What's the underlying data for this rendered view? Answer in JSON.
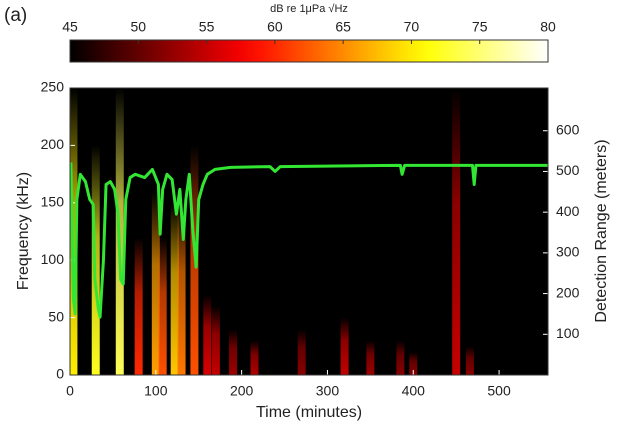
{
  "panel_label": "(a)",
  "chart_data": {
    "type": "spectrogram",
    "colorbar": {
      "label": "dB re 1μPa √Hz",
      "clim": [
        45,
        80
      ],
      "ticks": [
        45,
        50,
        55,
        60,
        65,
        70,
        75,
        80
      ]
    },
    "xlabel": "Time (minutes)",
    "ylabel": "Frequency (kHz)",
    "y2label": "Detection Range (meters)",
    "xlim": [
      0,
      557
    ],
    "xticks": [
      0,
      100,
      200,
      300,
      400,
      500
    ],
    "ylim": [
      0,
      250
    ],
    "yticks": [
      0,
      50,
      100,
      150,
      200,
      250
    ],
    "y2lim": [
      0,
      705
    ],
    "y2ticks": [
      100,
      200,
      300,
      400,
      500,
      600
    ],
    "heatmap": {
      "x": [
        4,
        30,
        58,
        80,
        100,
        108,
        122,
        130,
        145,
        160,
        170,
        190,
        215,
        270,
        320,
        350,
        385,
        400,
        450,
        466
      ],
      "top": [
        250,
        200,
        250,
        120,
        160,
        120,
        150,
        150,
        200,
        70,
        60,
        40,
        30,
        40,
        50,
        30,
        30,
        20,
        250,
        25
      ],
      "values": [
        70,
        72,
        74,
        60,
        66,
        62,
        68,
        64,
        62,
        56,
        55,
        53,
        54,
        52,
        55,
        53,
        52,
        52,
        55,
        52
      ]
    },
    "series": [
      {
        "axis": "y2",
        "color": "#33e633",
        "x": [
          1,
          4,
          6,
          8,
          12,
          18,
          23,
          27,
          29,
          33,
          35,
          39,
          42,
          47,
          52,
          56,
          59,
          62,
          65,
          70,
          76,
          87,
          96,
          103,
          105,
          108,
          113,
          119,
          124,
          128,
          132,
          135,
          139,
          143,
          147,
          150,
          155,
          160,
          169,
          187,
          233,
          239,
          245,
          385,
          387,
          390,
          469,
          471,
          473,
          557
        ],
        "values": [
          522,
          186,
          150,
          431,
          493,
          475,
          431,
          419,
          235,
          162,
          142,
          284,
          468,
          475,
          456,
          395,
          235,
          223,
          431,
          485,
          493,
          485,
          505,
          468,
          346,
          456,
          493,
          480,
          395,
          456,
          333,
          431,
          493,
          358,
          265,
          431,
          468,
          493,
          505,
          510,
          512,
          500,
          512,
          515,
          493,
          515,
          515,
          468,
          515,
          515
        ]
      }
    ]
  }
}
